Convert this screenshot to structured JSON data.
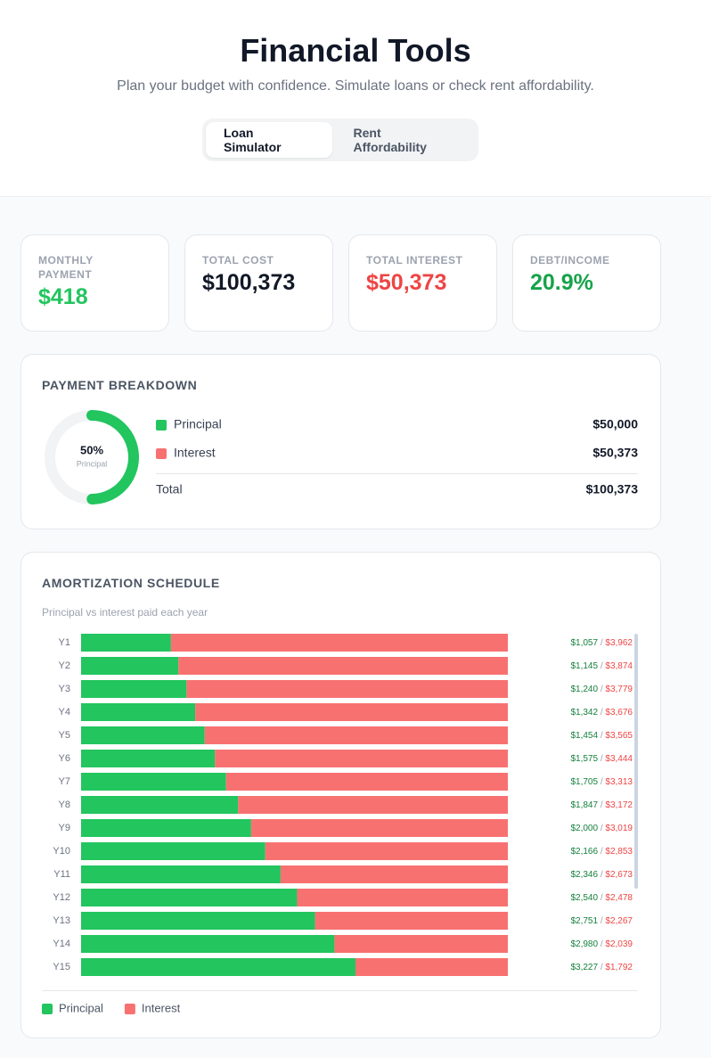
{
  "header": {
    "title": "Financial Tools",
    "subtitle": "Plan your budget with confidence. Simulate loans or check rent affordability.",
    "tabs": [
      "Loan Simulator",
      "Rent Affordability"
    ],
    "active_tab": 0
  },
  "stats": [
    {
      "label": "MONTHLY PAYMENT",
      "value": "$418",
      "color": "#22c55e"
    },
    {
      "label": "TOTAL COST",
      "value": "$100,373",
      "color": "#111827"
    },
    {
      "label": "TOTAL INTEREST",
      "value": "$50,373",
      "color": "#ef4444"
    },
    {
      "label": "DEBT/INCOME",
      "value": "20.9%",
      "color": "#16a34a"
    }
  ],
  "breakdown": {
    "title": "PAYMENT BREAKDOWN",
    "center_label": "50%",
    "center_caption": "Principal",
    "items": [
      {
        "name": "Principal",
        "color": "#22c55e",
        "value": 50000,
        "label": "$50,000"
      },
      {
        "name": "Interest",
        "color": "#f87171",
        "value": 50373,
        "label": "$50,373"
      }
    ],
    "total": {
      "name": "Total",
      "value": 100373,
      "label": "$100,373"
    }
  },
  "amortization": {
    "title": "AMORTIZATION SCHEDULE",
    "subtitle": "Principal vs interest paid each year",
    "value_separator": "/",
    "categories": [
      "Y1",
      "Y2",
      "Y3",
      "Y4",
      "Y5",
      "Y6",
      "Y7",
      "Y8",
      "Y9",
      "Y10",
      "Y11",
      "Y12",
      "Y13",
      "Y14",
      "Y15"
    ],
    "series": [
      {
        "name": "Principal",
        "color": "#22c55e",
        "text_color": "#15803d",
        "values": [
          1057,
          1145,
          1240,
          1342,
          1454,
          1575,
          1705,
          1847,
          2000,
          2166,
          2346,
          2540,
          2751,
          2980,
          3227
        ],
        "value_labels": [
          "$1,057",
          "$1,145",
          "$1,240",
          "$1,342",
          "$1,454",
          "$1,575",
          "$1,705",
          "$1,847",
          "$2,000",
          "$2,166",
          "$2,346",
          "$2,540",
          "$2,751",
          "$2,980",
          "$3,227"
        ]
      },
      {
        "name": "Interest",
        "color": "#f87171",
        "text_color": "#ef4444",
        "values": [
          3962,
          3874,
          3779,
          3676,
          3565,
          3444,
          3313,
          3172,
          3019,
          2853,
          2673,
          2478,
          2267,
          2039,
          1792
        ],
        "value_labels": [
          "$3,962",
          "$3,874",
          "$3,779",
          "$3,676",
          "$3,565",
          "$3,444",
          "$3,313",
          "$3,172",
          "$3,019",
          "$2,853",
          "$2,673",
          "$2,478",
          "$2,267",
          "$2,039",
          "$1,792"
        ]
      }
    ]
  }
}
